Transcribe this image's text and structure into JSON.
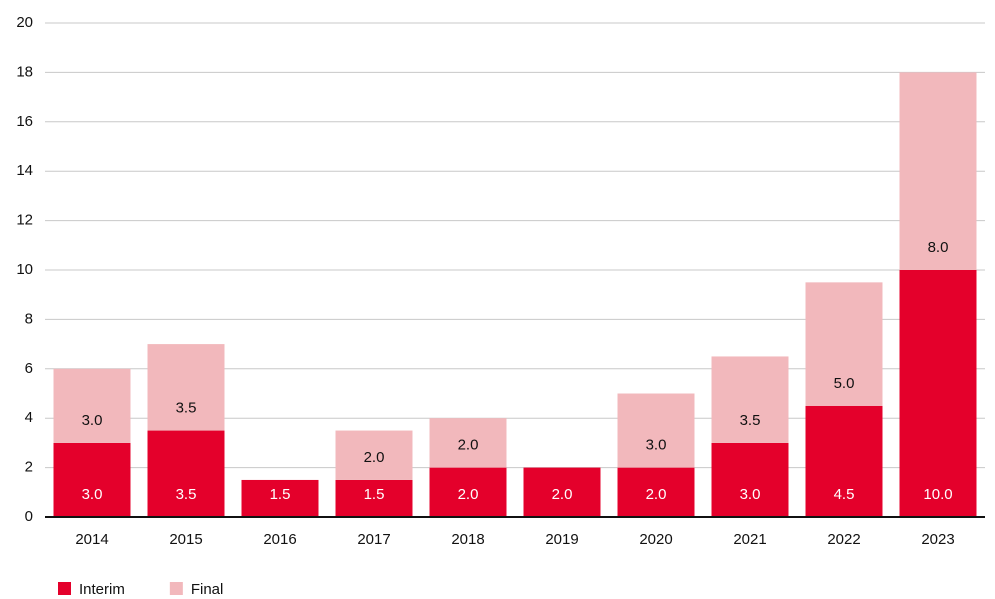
{
  "chart_data": {
    "type": "stacked_bar",
    "categories": [
      "2014",
      "2015",
      "2016",
      "2017",
      "2018",
      "2019",
      "2020",
      "2021",
      "2022",
      "2023"
    ],
    "series": [
      {
        "name": "Interim",
        "color": "#e4002b",
        "values": [
          3.0,
          3.5,
          1.5,
          1.5,
          2.0,
          2.0,
          2.0,
          3.0,
          4.5,
          10.0
        ],
        "value_labels": [
          "3.0",
          "3.5",
          "1.5",
          "1.5",
          "2.0",
          "2.0",
          "2.0",
          "3.0",
          "4.5",
          "10.0"
        ]
      },
      {
        "name": "Final",
        "color": "#f2b8bc",
        "values": [
          3.0,
          3.5,
          null,
          2.0,
          2.0,
          null,
          3.0,
          3.5,
          5.0,
          8.0
        ],
        "value_labels": [
          "3.0",
          "3.5",
          null,
          "2.0",
          "2.0",
          null,
          "3.0",
          "3.5",
          "5.0",
          "8.0"
        ]
      }
    ],
    "ylim": [
      0,
      20
    ],
    "yticks": [
      0,
      2,
      4,
      6,
      8,
      10,
      12,
      14,
      16,
      18,
      20
    ],
    "grid": true,
    "legend": "bottom-left"
  }
}
